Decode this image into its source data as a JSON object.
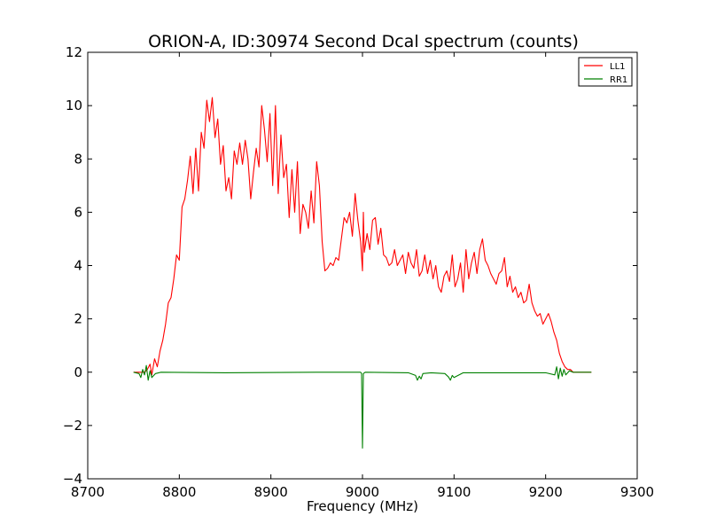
{
  "chart_data": {
    "type": "line",
    "title": "ORION-A, ID:30974 Second Dcal spectrum (counts)",
    "xlabel": "Frequency (MHz)",
    "ylabel": "",
    "xlim": [
      8700,
      9300
    ],
    "ylim": [
      -4,
      12
    ],
    "x_ticks": [
      "8700",
      "8800",
      "8900",
      "9000",
      "9100",
      "9200",
      "9300"
    ],
    "y_ticks": [
      "−4",
      "−2",
      "0",
      "2",
      "4",
      "6",
      "8",
      "10",
      "12"
    ],
    "x_tick_values": [
      8700,
      8800,
      8900,
      9000,
      9100,
      9200,
      9300
    ],
    "y_tick_values": [
      -4,
      -2,
      0,
      2,
      4,
      6,
      8,
      10,
      12
    ],
    "grid": false,
    "legend_position": "top-right",
    "series": [
      {
        "name": "LL1",
        "color": "#ff0000",
        "x": [
          8750,
          8762,
          8765,
          8768,
          8770,
          8773,
          8776,
          8779,
          8782,
          8785,
          8788,
          8791,
          8794,
          8797,
          8800,
          8803,
          8806,
          8809,
          8812,
          8815,
          8818,
          8821,
          8824,
          8827,
          8830,
          8833,
          8836,
          8839,
          8842,
          8845,
          8848,
          8851,
          8854,
          8857,
          8860,
          8863,
          8866,
          8869,
          8872,
          8875,
          8878,
          8881,
          8884,
          8887,
          8890,
          8893,
          8896,
          8899,
          8902,
          8905,
          8908,
          8911,
          8914,
          8917,
          8920,
          8923,
          8926,
          8929,
          8932,
          8935,
          8938,
          8941,
          8944,
          8947,
          8950,
          8953,
          8956,
          8959,
          8962,
          8965,
          8968,
          8971,
          8974,
          8977,
          8980,
          8983,
          8986,
          8989,
          8992,
          8995,
          8998,
          9000,
          9001,
          9002,
          9005,
          9008,
          9011,
          9014,
          9017,
          9020,
          9023,
          9026,
          9029,
          9032,
          9035,
          9038,
          9041,
          9044,
          9047,
          9050,
          9053,
          9056,
          9059,
          9062,
          9065,
          9068,
          9071,
          9074,
          9077,
          9080,
          9083,
          9086,
          9089,
          9092,
          9095,
          9098,
          9101,
          9104,
          9107,
          9110,
          9113,
          9116,
          9119,
          9122,
          9125,
          9128,
          9131,
          9134,
          9137,
          9140,
          9143,
          9146,
          9149,
          9152,
          9155,
          9158,
          9161,
          9164,
          9167,
          9170,
          9173,
          9176,
          9179,
          9182,
          9185,
          9188,
          9191,
          9194,
          9197,
          9200,
          9203,
          9206,
          9209,
          9212,
          9215,
          9218,
          9221,
          9224,
          9227,
          9230,
          9240,
          9250
        ],
        "y": [
          0,
          0,
          0.1,
          0.3,
          -0.1,
          0.5,
          0.2,
          0.8,
          1.2,
          1.8,
          2.6,
          2.8,
          3.5,
          4.4,
          4.2,
          6.2,
          6.5,
          7.2,
          8.1,
          6.7,
          8.4,
          6.8,
          9.0,
          8.4,
          10.2,
          9.4,
          10.3,
          8.8,
          9.5,
          7.8,
          8.5,
          6.8,
          7.3,
          6.5,
          8.3,
          7.8,
          8.6,
          7.8,
          8.7,
          8.0,
          6.5,
          7.5,
          8.4,
          7.7,
          10.0,
          9.1,
          7.9,
          9.7,
          7.0,
          10.0,
          6.7,
          8.9,
          7.3,
          7.8,
          5.8,
          7.6,
          6.0,
          7.9,
          5.2,
          6.3,
          6.0,
          5.4,
          6.8,
          5.6,
          7.9,
          7.0,
          4.9,
          3.8,
          3.9,
          4.1,
          4.0,
          4.3,
          4.2,
          5.0,
          5.8,
          5.6,
          6.0,
          5.1,
          6.7,
          5.7,
          4.9,
          3.8,
          6.0,
          4.5,
          5.2,
          4.6,
          5.7,
          5.8,
          4.8,
          5.4,
          4.4,
          4.3,
          4.0,
          4.1,
          4.6,
          4.0,
          4.2,
          4.4,
          3.7,
          4.5,
          4.1,
          3.9,
          4.6,
          3.6,
          3.8,
          4.4,
          3.7,
          4.2,
          3.5,
          4.0,
          3.2,
          3.0,
          3.6,
          3.8,
          3.4,
          4.4,
          3.2,
          3.5,
          4.1,
          3.0,
          4.6,
          3.5,
          4.1,
          4.5,
          3.7,
          4.6,
          5.0,
          4.2,
          4.0,
          3.7,
          3.5,
          3.3,
          3.7,
          3.8,
          4.3,
          3.2,
          3.6,
          3.0,
          3.2,
          2.8,
          3.0,
          2.6,
          2.7,
          3.3,
          2.6,
          2.3,
          2.1,
          2.2,
          1.8,
          2.0,
          2.2,
          1.9,
          1.5,
          1.2,
          0.7,
          0.4,
          0.2,
          0.1,
          0.1,
          0,
          0,
          0
        ]
      },
      {
        "name": "RR1",
        "color": "#008000",
        "x": [
          8750,
          8756,
          8758,
          8760,
          8762,
          8764,
          8766,
          8768,
          8770,
          8774,
          8780,
          8850,
          8950,
          8998,
          8999,
          9000,
          9001,
          9003,
          9050,
          9058,
          9060,
          9062,
          9064,
          9066,
          9075,
          9090,
          9094,
          9096,
          9098,
          9100,
          9110,
          9200,
          9210,
          9212,
          9214,
          9216,
          9218,
          9220,
          9222,
          9226,
          9230,
          9250
        ],
        "y": [
          0,
          -0.05,
          -0.2,
          0.1,
          -0.1,
          0.25,
          -0.3,
          0.05,
          -0.2,
          -0.05,
          0,
          -0.02,
          0,
          0,
          -0.05,
          -2.85,
          -0.05,
          0,
          -0.02,
          -0.12,
          -0.3,
          -0.15,
          -0.25,
          -0.05,
          -0.02,
          -0.05,
          -0.18,
          -0.3,
          -0.12,
          -0.2,
          -0.02,
          -0.02,
          -0.1,
          0.2,
          -0.25,
          0.15,
          -0.15,
          0.1,
          -0.1,
          0.05,
          0,
          0
        ]
      }
    ]
  }
}
